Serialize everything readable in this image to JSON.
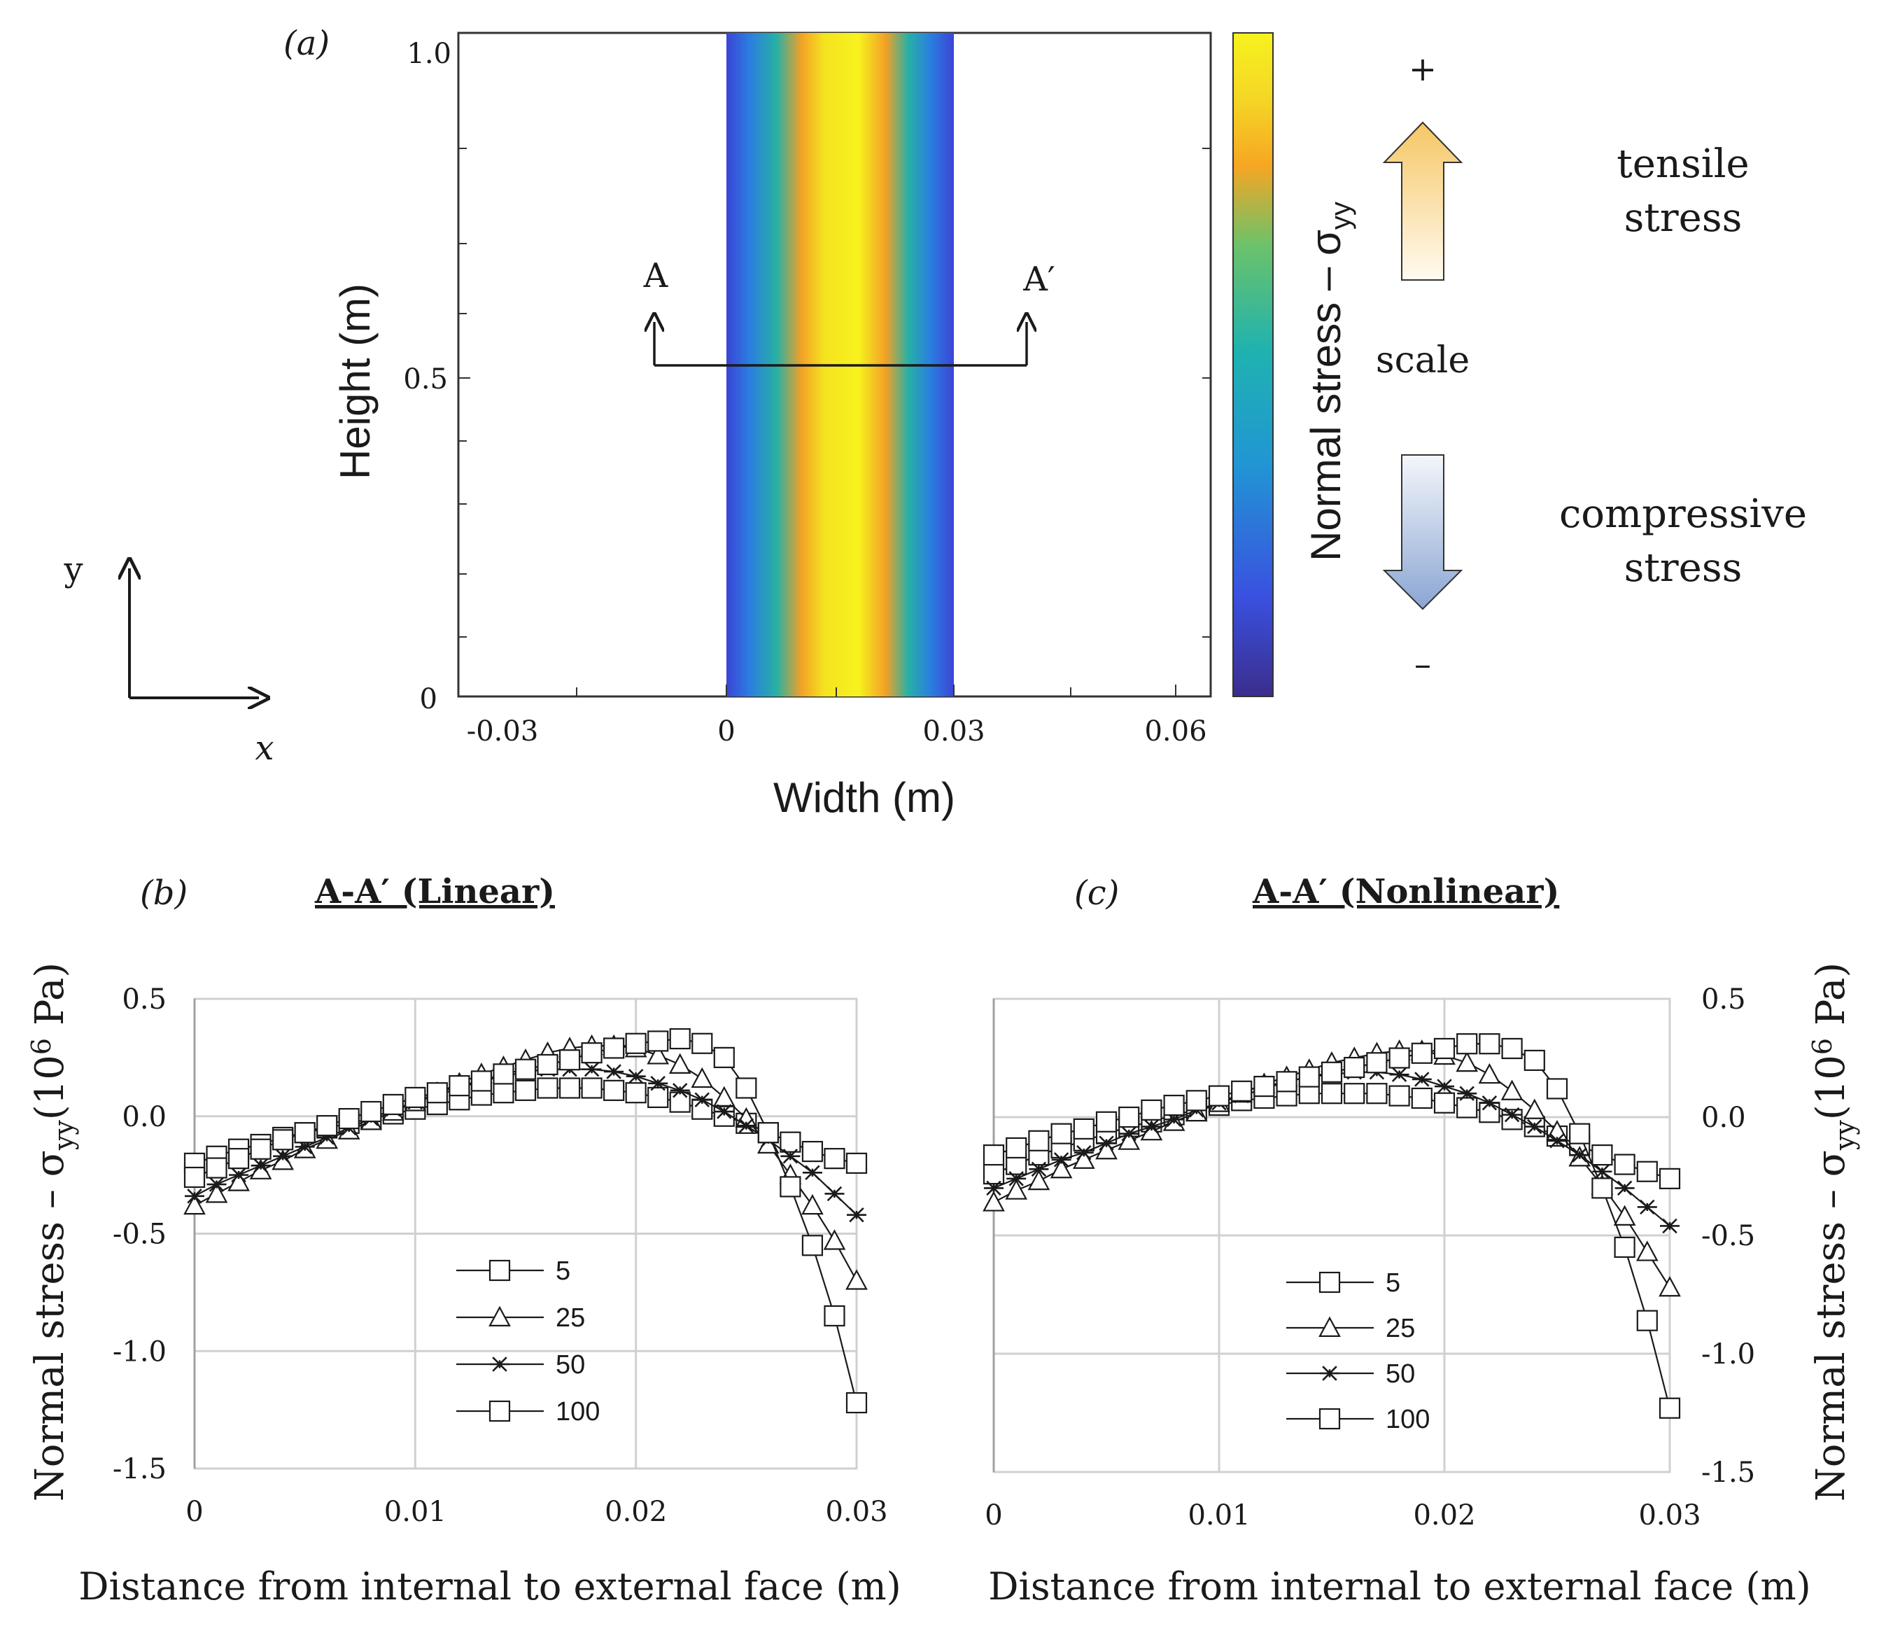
{
  "panel_a": {
    "label": "(a)",
    "x_ticks": [
      "-0.03",
      "0",
      "0.03",
      "0.06"
    ],
    "y_ticks": [
      "0",
      "0.5",
      "1.0"
    ],
    "x_label": "Width (m)",
    "y_label": "Height (m)",
    "section_start_label": "A",
    "section_end_label": "A′",
    "axes_x_label": "x",
    "axes_y_label": "y",
    "colorbar_label": "Normal stress – σ",
    "colorbar_label_sub": "yy",
    "plus_sign": "+",
    "minus_sign": "–",
    "scale_label": "scale",
    "tensile_line1": "tensile",
    "tensile_line2": "stress",
    "compressive_line1": "compressive",
    "compressive_line2": "stress",
    "colors": {
      "low": "#3b2e8c",
      "mid": "#1fb2b0",
      "high": "#f7f21e",
      "orange": "#f6a623"
    }
  },
  "chart_data": [
    {
      "type": "line",
      "panel_label": "(b)",
      "title": "A-A′ (Linear)",
      "xlabel": "Distance from internal to external face (m)",
      "ylabel_main": "Normal stress – σ",
      "ylabel_sub": "yy",
      "ylabel_unit_pre": "(10",
      "ylabel_unit_sup": "6",
      "ylabel_unit_post": " Pa)",
      "xlim": [
        0,
        0.03
      ],
      "ylim": [
        -1.5,
        0.5
      ],
      "x_ticks": [
        "0",
        "0.01",
        "0.02",
        "0.03"
      ],
      "y_ticks": [
        "0.5",
        "0.0",
        "-0.5",
        "-1.0",
        "-1.5"
      ],
      "x": [
        0,
        0.001,
        0.002,
        0.003,
        0.004,
        0.005,
        0.006,
        0.007,
        0.008,
        0.009,
        0.01,
        0.011,
        0.012,
        0.013,
        0.014,
        0.015,
        0.016,
        0.017,
        0.018,
        0.019,
        0.02,
        0.021,
        0.022,
        0.023,
        0.024,
        0.025,
        0.026,
        0.027,
        0.028,
        0.029,
        0.03
      ],
      "series": [
        {
          "name": "5",
          "marker": "square",
          "values": [
            -0.2,
            -0.17,
            -0.14,
            -0.12,
            -0.09,
            -0.07,
            -0.05,
            -0.03,
            -0.01,
            0.01,
            0.03,
            0.05,
            0.07,
            0.09,
            0.1,
            0.11,
            0.12,
            0.12,
            0.12,
            0.11,
            0.1,
            0.08,
            0.06,
            0.03,
            0.0,
            -0.03,
            -0.07,
            -0.11,
            -0.15,
            -0.18,
            -0.2
          ]
        },
        {
          "name": "25",
          "marker": "triangle",
          "values": [
            -0.38,
            -0.33,
            -0.28,
            -0.23,
            -0.19,
            -0.14,
            -0.1,
            -0.06,
            -0.02,
            0.02,
            0.06,
            0.1,
            0.14,
            0.18,
            0.21,
            0.24,
            0.27,
            0.29,
            0.3,
            0.3,
            0.29,
            0.26,
            0.22,
            0.16,
            0.08,
            -0.01,
            -0.12,
            -0.25,
            -0.38,
            -0.53,
            -0.7
          ]
        },
        {
          "name": "50",
          "marker": "asterisk",
          "values": [
            -0.34,
            -0.29,
            -0.25,
            -0.21,
            -0.17,
            -0.13,
            -0.09,
            -0.05,
            -0.01,
            0.03,
            0.06,
            0.09,
            0.12,
            0.15,
            0.17,
            0.19,
            0.2,
            0.2,
            0.2,
            0.19,
            0.17,
            0.14,
            0.11,
            0.07,
            0.02,
            -0.04,
            -0.1,
            -0.17,
            -0.24,
            -0.33,
            -0.42
          ]
        },
        {
          "name": "100",
          "marker": "square",
          "values": [
            -0.26,
            -0.22,
            -0.18,
            -0.14,
            -0.1,
            -0.07,
            -0.04,
            -0.01,
            0.02,
            0.05,
            0.08,
            0.1,
            0.13,
            0.15,
            0.18,
            0.2,
            0.22,
            0.24,
            0.27,
            0.29,
            0.31,
            0.32,
            0.33,
            0.31,
            0.25,
            0.12,
            -0.07,
            -0.3,
            -0.55,
            -0.85,
            -1.22
          ]
        }
      ]
    },
    {
      "type": "line",
      "panel_label": "(c)",
      "title": "A-A′ (Nonlinear)",
      "xlabel": "Distance from internal to external face (m)",
      "ylabel_main": "Normal stress – σ",
      "ylabel_sub": "yy",
      "ylabel_unit_pre": "(10",
      "ylabel_unit_sup": "6",
      "ylabel_unit_post": " Pa)",
      "xlim": [
        0,
        0.03
      ],
      "ylim": [
        -1.5,
        0.5
      ],
      "x_ticks": [
        "0",
        "0.01",
        "0.02",
        "0.03"
      ],
      "y_ticks": [
        "0.5",
        "0.0",
        "-0.5",
        "-1.0",
        "-1.5"
      ],
      "x": [
        0,
        0.001,
        0.002,
        0.003,
        0.004,
        0.005,
        0.006,
        0.007,
        0.008,
        0.009,
        0.01,
        0.011,
        0.012,
        0.013,
        0.014,
        0.015,
        0.016,
        0.017,
        0.018,
        0.019,
        0.02,
        0.021,
        0.022,
        0.023,
        0.024,
        0.025,
        0.026,
        0.027,
        0.028,
        0.029,
        0.03
      ],
      "series": [
        {
          "name": "5",
          "marker": "square",
          "values": [
            -0.24,
            -0.2,
            -0.16,
            -0.13,
            -0.1,
            -0.07,
            -0.04,
            -0.02,
            0.01,
            0.03,
            0.05,
            0.07,
            0.08,
            0.09,
            0.1,
            0.1,
            0.1,
            0.1,
            0.09,
            0.08,
            0.06,
            0.04,
            0.02,
            -0.01,
            -0.04,
            -0.08,
            -0.12,
            -0.16,
            -0.2,
            -0.23,
            -0.26
          ]
        },
        {
          "name": "25",
          "marker": "triangle",
          "values": [
            -0.36,
            -0.31,
            -0.27,
            -0.22,
            -0.18,
            -0.14,
            -0.1,
            -0.06,
            -0.02,
            0.02,
            0.06,
            0.1,
            0.14,
            0.17,
            0.2,
            0.23,
            0.25,
            0.27,
            0.28,
            0.28,
            0.26,
            0.23,
            0.18,
            0.11,
            0.03,
            -0.06,
            -0.17,
            -0.29,
            -0.42,
            -0.57,
            -0.72
          ]
        },
        {
          "name": "50",
          "marker": "asterisk",
          "values": [
            -0.3,
            -0.26,
            -0.22,
            -0.18,
            -0.15,
            -0.11,
            -0.07,
            -0.04,
            -0.01,
            0.03,
            0.06,
            0.09,
            0.12,
            0.15,
            0.17,
            0.18,
            0.19,
            0.19,
            0.18,
            0.16,
            0.13,
            0.1,
            0.06,
            0.01,
            -0.04,
            -0.1,
            -0.16,
            -0.23,
            -0.3,
            -0.38,
            -0.46
          ]
        },
        {
          "name": "100",
          "marker": "square",
          "values": [
            -0.16,
            -0.13,
            -0.1,
            -0.07,
            -0.05,
            -0.02,
            0.0,
            0.03,
            0.05,
            0.07,
            0.09,
            0.11,
            0.13,
            0.15,
            0.17,
            0.19,
            0.21,
            0.23,
            0.25,
            0.27,
            0.29,
            0.31,
            0.31,
            0.29,
            0.24,
            0.12,
            -0.07,
            -0.3,
            -0.55,
            -0.86,
            -1.23
          ]
        }
      ]
    }
  ]
}
